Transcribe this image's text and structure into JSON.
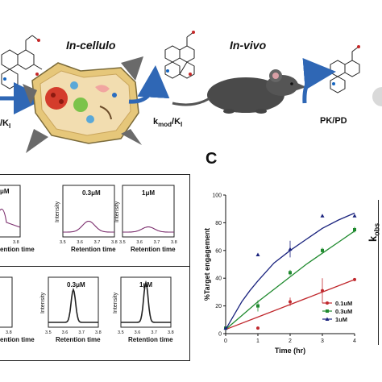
{
  "top": {
    "stage_in_cellulo": "In-cellulo",
    "stage_in_vivo": "In-vivo",
    "rate_left": "/K",
    "rate_left_sub": "I",
    "rate_mid": "k",
    "rate_mid_sub": "mod",
    "rate_mid_tail": "/K",
    "rate_mid_tail_sub": "I",
    "pkpd": "PK/PD",
    "arrow_color": "#2f67b5"
  },
  "panel_letter": "C",
  "small_plots": {
    "top_row": {
      "ylabel": "Intensity",
      "xlabel": "Retention time",
      "ticks": [
        "3.5",
        "3.6",
        "3.7",
        "3.8"
      ],
      "left_tick": "3.8",
      "left_conc_fragment": "μM",
      "left_xlabel_fragment": "ention time",
      "panels": [
        {
          "conc": "0.3μM"
        },
        {
          "conc": "1μM"
        }
      ],
      "trace_color": "#7a2c6c"
    },
    "bottom_row": {
      "ylabel": "Intensity",
      "xlabel": "Retention time",
      "ticks": [
        "3.5",
        "3.6",
        "3.7",
        "3.8"
      ],
      "left_tick": "3.8",
      "left_xlabel_fragment": "ention time",
      "panels": [
        {
          "conc": "0.3μM"
        },
        {
          "conc": "1μM"
        }
      ],
      "trace_color": "#222222"
    }
  },
  "chart_data": {
    "type": "scatter",
    "xlabel": "Time (hr)",
    "ylabel": "%Target engagement",
    "xlim": [
      0,
      4
    ],
    "ylim": [
      0,
      100
    ],
    "xticks": [
      0,
      1,
      2,
      3,
      4
    ],
    "yticks": [
      0,
      20,
      40,
      60,
      80,
      100
    ],
    "legend_position": "bottom-right",
    "series": [
      {
        "name": "0.1uM",
        "color": "#c0282d",
        "marker": "circle",
        "x": [
          0,
          1,
          2,
          3,
          4
        ],
        "y": [
          4,
          4,
          23,
          31,
          39
        ],
        "err": [
          0,
          1,
          3,
          9,
          1
        ],
        "fit": [
          [
            0,
            3
          ],
          [
            1,
            12
          ],
          [
            2,
            21
          ],
          [
            3,
            30
          ],
          [
            4,
            39
          ]
        ]
      },
      {
        "name": "0.3uM",
        "color": "#1f8a2e",
        "marker": "square",
        "x": [
          0,
          1,
          2,
          3,
          4
        ],
        "y": [
          4,
          20,
          44,
          60,
          75
        ],
        "err": [
          0,
          4,
          2,
          2,
          2
        ],
        "fit": [
          [
            0,
            3
          ],
          [
            0.5,
            13
          ],
          [
            1,
            23
          ],
          [
            1.5,
            32
          ],
          [
            2,
            41
          ],
          [
            2.5,
            50
          ],
          [
            3,
            58
          ],
          [
            3.5,
            66
          ],
          [
            4,
            74
          ]
        ]
      },
      {
        "name": "1uM",
        "color": "#1a237e",
        "marker": "triangle",
        "x": [
          0,
          1,
          2,
          3,
          4
        ],
        "y": [
          4,
          57,
          61,
          85,
          85
        ],
        "err": [
          0,
          0,
          6,
          0,
          0
        ],
        "fit": [
          [
            0,
            3
          ],
          [
            0.25,
            13
          ],
          [
            0.5,
            23
          ],
          [
            0.75,
            31
          ],
          [
            1,
            38
          ],
          [
            1.5,
            51
          ],
          [
            2,
            60
          ],
          [
            2.5,
            68
          ],
          [
            3,
            76
          ],
          [
            3.5,
            82
          ],
          [
            4,
            87
          ]
        ]
      }
    ]
  },
  "right_edge": {
    "ylabel_main": "k",
    "ylabel_sub": "obs"
  }
}
